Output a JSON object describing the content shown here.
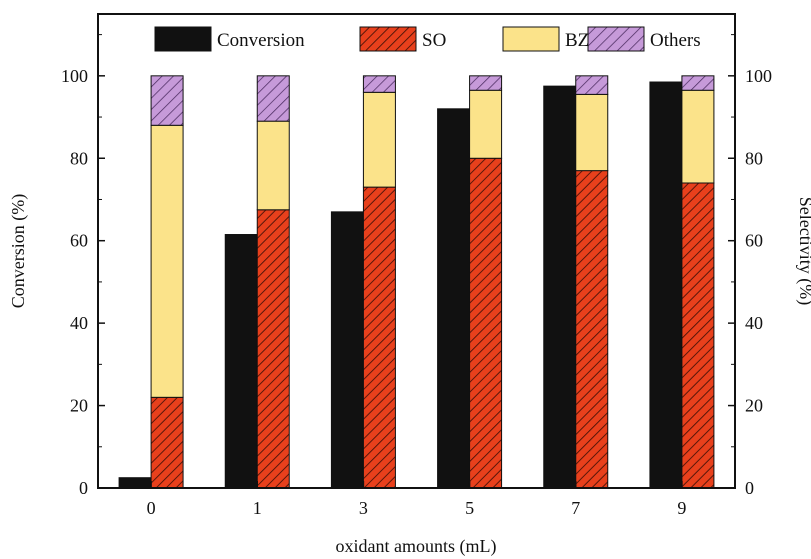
{
  "chart_data": {
    "type": "bar",
    "xlabel": "oxidant amounts (mL)",
    "ylabel_left": "Conversion (%)",
    "ylabel_right": "Selectivity (%)",
    "ylim": [
      0,
      115
    ],
    "yticks": [
      0,
      20,
      40,
      60,
      80,
      100
    ],
    "categories": [
      "0",
      "1",
      "3",
      "5",
      "7",
      "9"
    ],
    "legend_position": "top",
    "grid": false,
    "series": [
      {
        "name": "Conversion",
        "axis": "left",
        "stack": "conversion",
        "color": "#111111",
        "pattern": "solid",
        "values": [
          2.5,
          61.5,
          67,
          92,
          97.5,
          98.5
        ]
      },
      {
        "name": "SO",
        "axis": "right",
        "stack": "selectivity",
        "color": "#e8401c",
        "pattern": "hatch-dense",
        "values": [
          22,
          67.5,
          73,
          80,
          77,
          74
        ]
      },
      {
        "name": "BZ",
        "axis": "right",
        "stack": "selectivity",
        "color": "#fbe38a",
        "pattern": "solid",
        "values": [
          66,
          21.5,
          23,
          16.5,
          18.5,
          22.5
        ]
      },
      {
        "name": "Others",
        "axis": "right",
        "stack": "selectivity",
        "color": "#c69ad9",
        "pattern": "hatch",
        "values": [
          12,
          11,
          4,
          3.5,
          4.5,
          3.5
        ]
      }
    ]
  }
}
